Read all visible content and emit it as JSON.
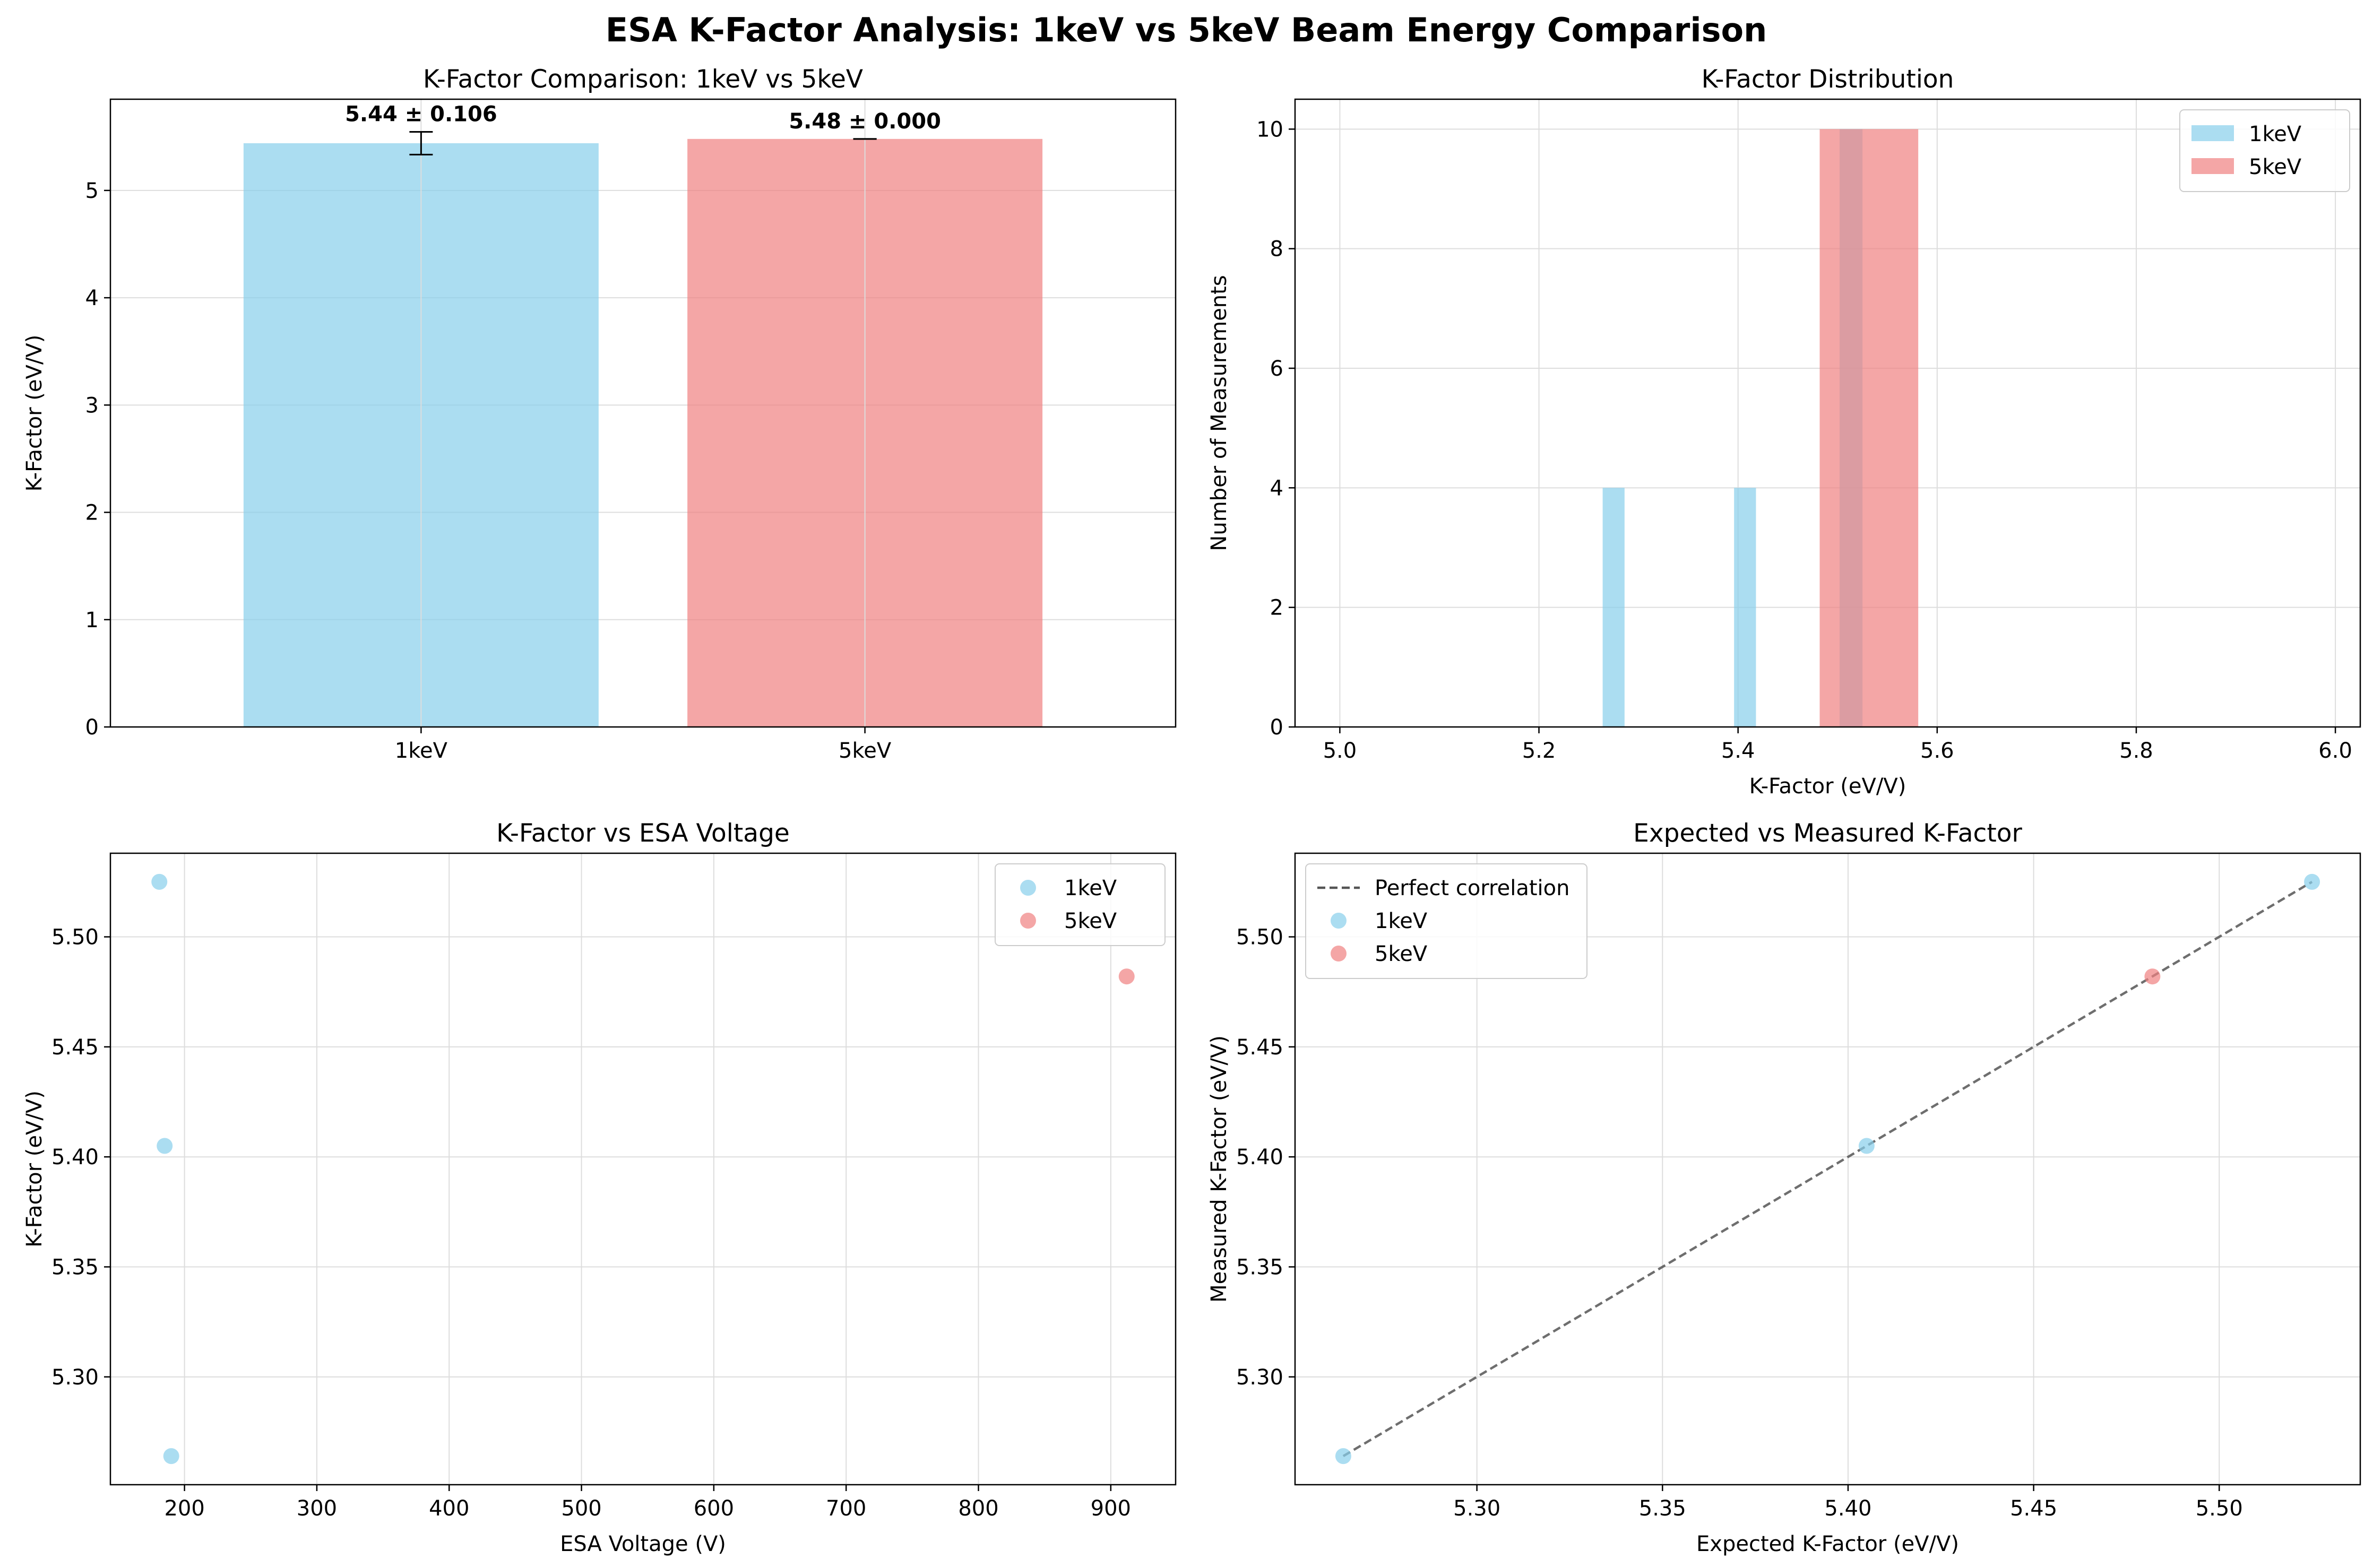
{
  "figure": {
    "suptitle": "ESA K-Factor Analysis: 1keV vs 5keV Beam Energy Comparison"
  },
  "colors": {
    "keV1": "#87ceeb",
    "keV5": "#f08080",
    "grid": "#dddddd",
    "reference_line": "#555555"
  },
  "chart_data": [
    {
      "id": "bar",
      "type": "bar",
      "title": "K-Factor Comparison: 1keV vs 5keV",
      "xlabel": "",
      "ylabel": "K-Factor (eV/V)",
      "categories": [
        "1keV",
        "5keV"
      ],
      "values": [
        5.44,
        5.48
      ],
      "errors": [
        0.106,
        0.0
      ],
      "bar_labels": [
        "5.44 ± 0.106",
        "5.48 ± 0.000"
      ],
      "ylim": [
        0,
        5.85
      ],
      "yticks": [
        0,
        1,
        2,
        3,
        4,
        5
      ],
      "grid": true
    },
    {
      "id": "hist",
      "type": "bar",
      "title": "K-Factor Distribution",
      "xlabel": "K-Factor (eV/V)",
      "ylabel": "Number of Measurements",
      "xlim": [
        4.955,
        6.025
      ],
      "ylim": [
        0,
        10.5
      ],
      "xticks": [
        "5.0",
        "5.2",
        "5.4",
        "5.6",
        "5.8",
        "6.0"
      ],
      "yticks": [
        0,
        2,
        4,
        6,
        8,
        10
      ],
      "legend": "top-right",
      "grid": true,
      "series": [
        {
          "name": "1keV",
          "bins": [
            {
              "x0": 5.264,
              "x1": 5.286,
              "count": 4
            },
            {
              "x0": 5.396,
              "x1": 5.418,
              "count": 4
            },
            {
              "x0": 5.502,
              "x1": 5.525,
              "count": 10
            }
          ]
        },
        {
          "name": "5keV",
          "bins": [
            {
              "x0": 5.482,
              "x1": 5.581,
              "count": 10
            }
          ]
        }
      ]
    },
    {
      "id": "volt",
      "type": "scatter",
      "title": "K-Factor vs ESA Voltage",
      "xlabel": "ESA Voltage (V)",
      "ylabel": "K-Factor (eV/V)",
      "xlim": [
        144,
        949
      ],
      "ylim": [
        5.251,
        5.538
      ],
      "xticks": [
        200,
        300,
        400,
        500,
        600,
        700,
        800,
        900
      ],
      "yticks": [
        "5.30",
        "5.35",
        "5.40",
        "5.45",
        "5.50"
      ],
      "legend": "top-right",
      "grid": true,
      "series": [
        {
          "name": "1keV",
          "points": [
            {
              "x": 181,
              "y": 5.525
            },
            {
              "x": 185,
              "y": 5.405
            },
            {
              "x": 190,
              "y": 5.264
            }
          ]
        },
        {
          "name": "5keV",
          "points": [
            {
              "x": 912,
              "y": 5.482
            }
          ]
        }
      ]
    },
    {
      "id": "corr",
      "type": "scatter",
      "title": "Expected vs Measured K-Factor",
      "xlabel": "Expected K-Factor (eV/V)",
      "ylabel": "Measured K-Factor (eV/V)",
      "xlim": [
        5.251,
        5.538
      ],
      "ylim": [
        5.251,
        5.538
      ],
      "xticks": [
        "5.30",
        "5.35",
        "5.40",
        "5.45",
        "5.50"
      ],
      "yticks": [
        "5.30",
        "5.35",
        "5.40",
        "5.45",
        "5.50"
      ],
      "legend": "top-left",
      "grid": true,
      "reference_line": {
        "name": "Perfect correlation",
        "from": [
          5.264,
          5.264
        ],
        "to": [
          5.525,
          5.525
        ]
      },
      "series": [
        {
          "name": "1keV",
          "points": [
            {
              "x": 5.264,
              "y": 5.264
            },
            {
              "x": 5.405,
              "y": 5.405
            },
            {
              "x": 5.525,
              "y": 5.525
            }
          ]
        },
        {
          "name": "5keV",
          "points": [
            {
              "x": 5.482,
              "y": 5.482
            }
          ]
        }
      ]
    }
  ]
}
